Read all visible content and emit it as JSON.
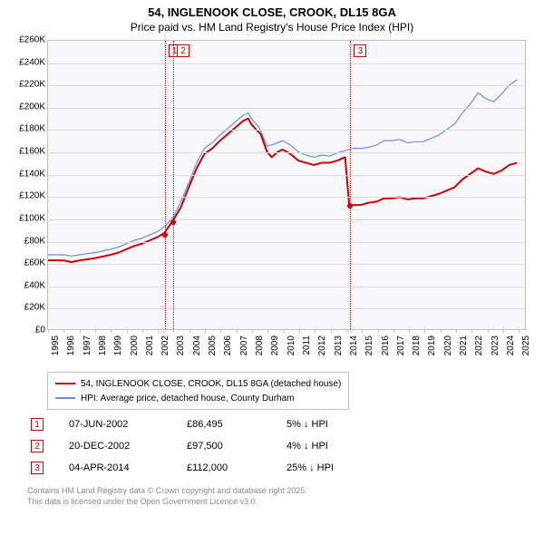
{
  "title": "54, INGLENOOK CLOSE, CROOK, DL15 8GA",
  "subtitle": "Price paid vs. HM Land Registry's House Price Index (HPI)",
  "chart": {
    "type": "line",
    "background_color": "#f8f8fa",
    "grid_color": "#d9d9dd",
    "border_color": "#bfbfbf",
    "x_years": [
      1995,
      1996,
      1997,
      1998,
      1999,
      2000,
      2001,
      2002,
      2003,
      2004,
      2005,
      2006,
      2007,
      2008,
      2009,
      2010,
      2011,
      2012,
      2013,
      2014,
      2015,
      2016,
      2017,
      2018,
      2019,
      2020,
      2021,
      2022,
      2023,
      2024,
      2025
    ],
    "x_min": 1995,
    "x_max": 2025.5,
    "y_ticks": [
      0,
      20000,
      40000,
      60000,
      80000,
      100000,
      120000,
      140000,
      160000,
      180000,
      200000,
      220000,
      240000,
      260000
    ],
    "y_tick_labels": [
      "£0",
      "£20K",
      "£40K",
      "£60K",
      "£80K",
      "£100K",
      "£120K",
      "£140K",
      "£160K",
      "£180K",
      "£200K",
      "£220K",
      "£240K",
      "£260K"
    ],
    "y_min": 0,
    "y_max": 260000,
    "axis_fontsize": 10,
    "series": [
      {
        "name": "property",
        "label": "54, INGLENOOK CLOSE, CROOK, DL15 8GA (detached house)",
        "color": "#cc0000",
        "width": 2,
        "points": [
          [
            1995.0,
            62000
          ],
          [
            1995.5,
            62000
          ],
          [
            1996.0,
            62000
          ],
          [
            1996.5,
            60500
          ],
          [
            1997.0,
            62000
          ],
          [
            1997.5,
            63000
          ],
          [
            1998.0,
            64000
          ],
          [
            1998.5,
            65500
          ],
          [
            1999.0,
            67000
          ],
          [
            1999.5,
            69000
          ],
          [
            2000.0,
            72000
          ],
          [
            2000.5,
            75000
          ],
          [
            2001.0,
            77000
          ],
          [
            2001.5,
            80000
          ],
          [
            2002.0,
            83000
          ],
          [
            2002.43,
            86495
          ],
          [
            2002.7,
            92000
          ],
          [
            2002.97,
            97500
          ],
          [
            2003.5,
            110000
          ],
          [
            2004.0,
            128000
          ],
          [
            2004.5,
            145000
          ],
          [
            2005.0,
            158000
          ],
          [
            2005.5,
            163000
          ],
          [
            2006.0,
            170000
          ],
          [
            2006.5,
            176000
          ],
          [
            2007.0,
            182000
          ],
          [
            2007.5,
            188000
          ],
          [
            2007.8,
            190000
          ],
          [
            2008.0,
            185000
          ],
          [
            2008.3,
            180000
          ],
          [
            2008.6,
            176000
          ],
          [
            2009.0,
            160000
          ],
          [
            2009.3,
            155000
          ],
          [
            2009.7,
            160000
          ],
          [
            2010.0,
            162000
          ],
          [
            2010.5,
            158000
          ],
          [
            2011.0,
            152000
          ],
          [
            2011.5,
            150000
          ],
          [
            2012.0,
            148000
          ],
          [
            2012.5,
            150000
          ],
          [
            2013.0,
            150000
          ],
          [
            2013.5,
            152000
          ],
          [
            2014.0,
            155000
          ],
          [
            2014.26,
            112000
          ],
          [
            2014.5,
            112000
          ],
          [
            2015.0,
            112000
          ],
          [
            2015.5,
            114000
          ],
          [
            2016.0,
            115000
          ],
          [
            2016.5,
            118000
          ],
          [
            2017.0,
            118000
          ],
          [
            2017.5,
            119000
          ],
          [
            2018.0,
            117000
          ],
          [
            2018.5,
            118000
          ],
          [
            2019.0,
            118000
          ],
          [
            2019.5,
            120000
          ],
          [
            2020.0,
            122000
          ],
          [
            2020.5,
            125000
          ],
          [
            2021.0,
            128000
          ],
          [
            2021.5,
            135000
          ],
          [
            2022.0,
            140000
          ],
          [
            2022.5,
            145000
          ],
          [
            2023.0,
            142000
          ],
          [
            2023.5,
            140000
          ],
          [
            2024.0,
            143000
          ],
          [
            2024.5,
            148000
          ],
          [
            2025.0,
            150000
          ]
        ]
      },
      {
        "name": "hpi",
        "label": "HPI: Average price, detached house, County Durham",
        "color": "#6a8fd8",
        "width": 1.2,
        "points": [
          [
            1995.0,
            67000
          ],
          [
            1995.5,
            67000
          ],
          [
            1996.0,
            67000
          ],
          [
            1996.5,
            66000
          ],
          [
            1997.0,
            67000
          ],
          [
            1997.5,
            68000
          ],
          [
            1998.0,
            69000
          ],
          [
            1998.5,
            70500
          ],
          [
            1999.0,
            72000
          ],
          [
            1999.5,
            74000
          ],
          [
            2000.0,
            77000
          ],
          [
            2000.5,
            80000
          ],
          [
            2001.0,
            82000
          ],
          [
            2001.5,
            85000
          ],
          [
            2002.0,
            88000
          ],
          [
            2002.5,
            93000
          ],
          [
            2003.0,
            101000
          ],
          [
            2003.5,
            115000
          ],
          [
            2004.0,
            132000
          ],
          [
            2004.5,
            150000
          ],
          [
            2005.0,
            163000
          ],
          [
            2005.5,
            168000
          ],
          [
            2006.0,
            175000
          ],
          [
            2006.5,
            181000
          ],
          [
            2007.0,
            187000
          ],
          [
            2007.5,
            193000
          ],
          [
            2007.8,
            195000
          ],
          [
            2008.0,
            190000
          ],
          [
            2008.5,
            182000
          ],
          [
            2009.0,
            165000
          ],
          [
            2009.5,
            167000
          ],
          [
            2010.0,
            170000
          ],
          [
            2010.5,
            166000
          ],
          [
            2011.0,
            160000
          ],
          [
            2011.5,
            157000
          ],
          [
            2012.0,
            155000
          ],
          [
            2012.5,
            157000
          ],
          [
            2013.0,
            156000
          ],
          [
            2013.5,
            159000
          ],
          [
            2014.0,
            161000
          ],
          [
            2014.5,
            163000
          ],
          [
            2015.0,
            163000
          ],
          [
            2015.5,
            164000
          ],
          [
            2016.0,
            166000
          ],
          [
            2016.5,
            170000
          ],
          [
            2017.0,
            170000
          ],
          [
            2017.5,
            171000
          ],
          [
            2018.0,
            168000
          ],
          [
            2018.5,
            169000
          ],
          [
            2019.0,
            169000
          ],
          [
            2019.5,
            172000
          ],
          [
            2020.0,
            175000
          ],
          [
            2020.5,
            180000
          ],
          [
            2021.0,
            185000
          ],
          [
            2021.5,
            195000
          ],
          [
            2022.0,
            203000
          ],
          [
            2022.5,
            213000
          ],
          [
            2023.0,
            208000
          ],
          [
            2023.5,
            205000
          ],
          [
            2024.0,
            212000
          ],
          [
            2024.5,
            220000
          ],
          [
            2025.0,
            225000
          ]
        ]
      }
    ],
    "sale_markers": [
      {
        "n": "1",
        "x": 2002.43,
        "y": 86495
      },
      {
        "n": "2",
        "x": 2002.97,
        "y": 97500
      },
      {
        "n": "3",
        "x": 2014.26,
        "y": 112000
      }
    ]
  },
  "legend": {
    "items": [
      {
        "color": "#cc0000",
        "width": 2,
        "label": "54, INGLENOOK CLOSE, CROOK, DL15 8GA (detached house)"
      },
      {
        "color": "#6a8fd8",
        "width": 1.2,
        "label": "HPI: Average price, detached house, County Durham"
      }
    ]
  },
  "sales": [
    {
      "n": "1",
      "date": "07-JUN-2002",
      "price": "£86,495",
      "delta": "5% ↓ HPI"
    },
    {
      "n": "2",
      "date": "20-DEC-2002",
      "price": "£97,500",
      "delta": "4% ↓ HPI"
    },
    {
      "n": "3",
      "date": "04-APR-2014",
      "price": "£112,000",
      "delta": "25% ↓ HPI"
    }
  ],
  "license_line1": "Contains HM Land Registry data © Crown copyright and database right 2025.",
  "license_line2": "This data is licensed under the Open Government Licence v3.0."
}
